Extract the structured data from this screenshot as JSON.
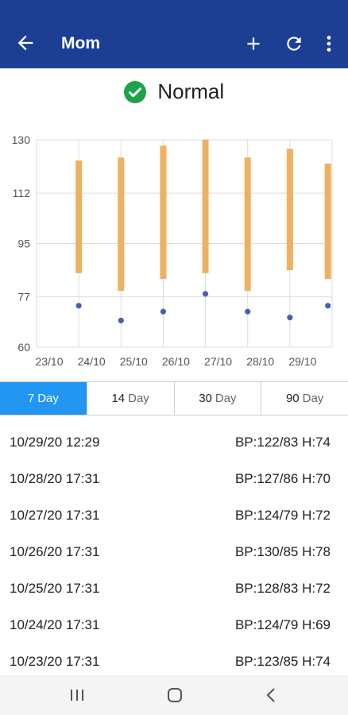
{
  "appbar": {
    "title": "Mom",
    "back_icon": "arrow-left-icon",
    "add_icon": "plus-icon",
    "refresh_icon": "refresh-icon",
    "more_icon": "more-vert-icon"
  },
  "status": {
    "label": "Normal",
    "icon": "check-circle-icon",
    "color": "#1aa34a"
  },
  "colors": {
    "appbar": "#1c3f94",
    "bar": "#efb062",
    "dot": "#4a5fb3",
    "tab_active": "#2196f3"
  },
  "chart_data": {
    "type": "bar",
    "description_series": [
      {
        "name": "",
        "kind": "range-bar",
        "color": "#efb062"
      },
      {
        "name": "",
        "kind": "dot",
        "color": "#4a5fb3"
      }
    ],
    "x_ticks": [
      "23/10",
      "24/10",
      "25/10",
      "26/10",
      "27/10",
      "28/10",
      "29/10"
    ],
    "y_ticks": [
      60,
      77,
      95,
      112,
      130
    ],
    "ylim": [
      60,
      130
    ],
    "grid": true,
    "ranges": [
      {
        "x": 24.0,
        "high": 123,
        "low": 85
      },
      {
        "x": 25.0,
        "high": 124,
        "low": 79
      },
      {
        "x": 26.0,
        "high": 128,
        "low": 83
      },
      {
        "x": 27.0,
        "high": 130,
        "low": 85
      },
      {
        "x": 28.0,
        "high": 124,
        "low": 79
      },
      {
        "x": 29.0,
        "high": 127,
        "low": 86
      },
      {
        "x": 29.9,
        "high": 122,
        "low": 83
      }
    ],
    "dots": [
      {
        "x": 24.0,
        "y": 74
      },
      {
        "x": 25.0,
        "y": 69
      },
      {
        "x": 26.0,
        "y": 72
      },
      {
        "x": 27.0,
        "y": 78
      },
      {
        "x": 28.0,
        "y": 72
      },
      {
        "x": 29.0,
        "y": 70
      },
      {
        "x": 29.9,
        "y": 74
      }
    ]
  },
  "tabs": [
    {
      "num": "7",
      "unit": "Day",
      "active": true
    },
    {
      "num": "14",
      "unit": "Day",
      "active": false
    },
    {
      "num": "30",
      "unit": "Day",
      "active": false
    },
    {
      "num": "90",
      "unit": "Day",
      "active": false
    }
  ],
  "readings": [
    {
      "datetime": "10/29/20 12:29",
      "value": "BP:122/83 H:74"
    },
    {
      "datetime": "10/28/20 17:31",
      "value": "BP:127/86 H:70"
    },
    {
      "datetime": "10/27/20 17:31",
      "value": "BP:124/79 H:72"
    },
    {
      "datetime": "10/26/20 17:31",
      "value": "BP:130/85 H:78"
    },
    {
      "datetime": "10/25/20 17:31",
      "value": "BP:128/83 H:72"
    },
    {
      "datetime": "10/24/20 17:31",
      "value": "BP:124/79 H:69"
    },
    {
      "datetime": "10/23/20 17:31",
      "value": "BP:123/85 H:74"
    }
  ],
  "navbar": {
    "recent_icon": "recent-apps-icon",
    "home_icon": "home-icon",
    "back_icon": "back-chevron-icon"
  }
}
